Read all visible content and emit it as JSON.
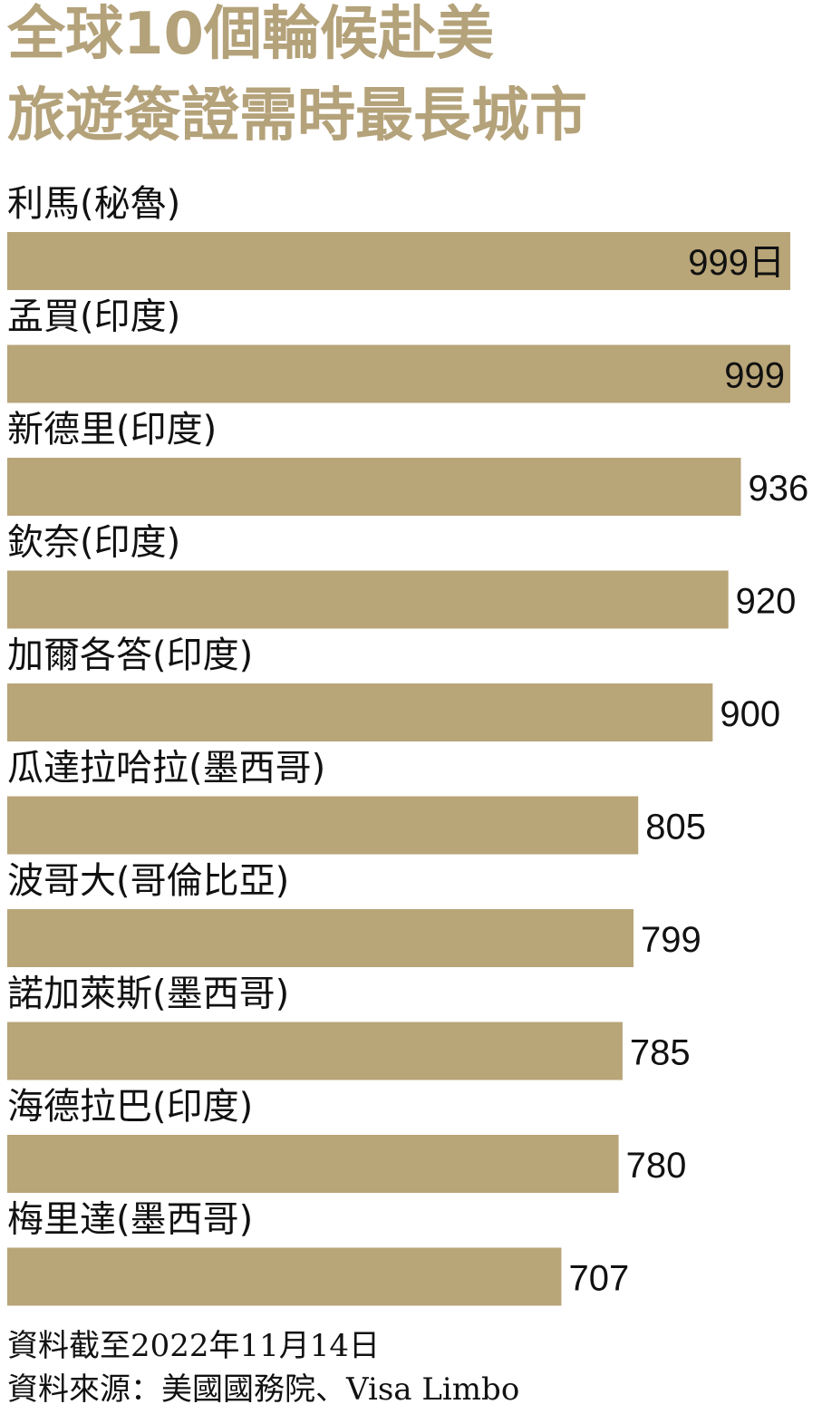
{
  "title_lines": [
    "全球10個輪候赴美",
    "旅遊簽證需時最長城市"
  ],
  "colors": {
    "bar": "#b8a578",
    "title": "#b4a27a",
    "text": "#111111",
    "background": "#ffffff"
  },
  "chart_data": {
    "type": "bar",
    "orientation": "horizontal",
    "title": "全球10個輪候赴美旅遊簽證需時最長城市",
    "unit": "日",
    "categories": [
      "利馬(秘魯)",
      "孟買(印度)",
      "新德里(印度)",
      "欽奈(印度)",
      "加爾各答(印度)",
      "瓜達拉哈拉(墨西哥)",
      "波哥大(哥倫比亞)",
      "諾加萊斯(墨西哥)",
      "海德拉巴(印度)",
      "梅里達(墨西哥)"
    ],
    "values": [
      999,
      999,
      936,
      920,
      900,
      805,
      799,
      785,
      780,
      707
    ],
    "value_labels": [
      "999日",
      "999",
      "936",
      "920",
      "900",
      "805",
      "799",
      "785",
      "780",
      "707"
    ],
    "xlim": [
      0,
      999
    ],
    "grid": false,
    "legend": "none"
  },
  "footnotes": [
    "資料截至2022年11月14日",
    "資料來源：美國國務院、Visa Limbo"
  ]
}
